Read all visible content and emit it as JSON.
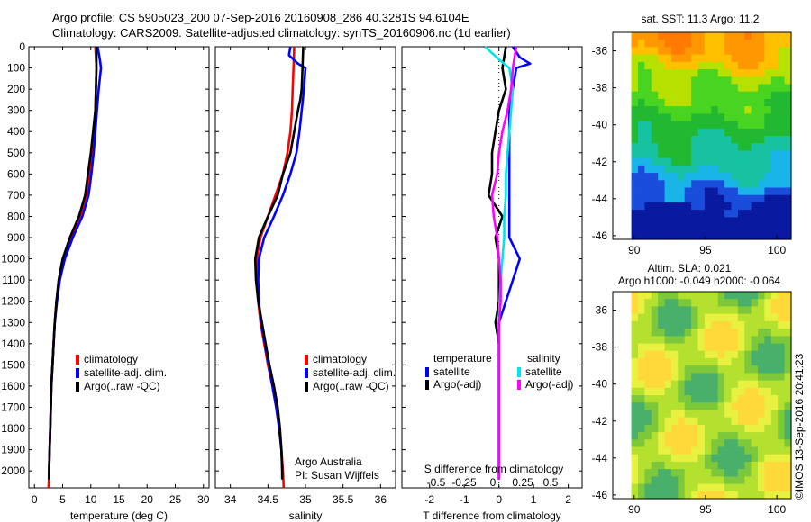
{
  "header": {
    "line1": "Argo profile: CS 5905023_200 07-Sep-2016 20160908_286 40.3281S 94.6104E",
    "line2": "Climatology: CARS2009. Satellite-adjusted climatology: synTS_20160906.nc (1d earlier)"
  },
  "side_stamp": "©IMOS 13-Sep-2016 20:41:23",
  "colors": {
    "climatology": "#ff0000",
    "satellite": "#0000ff",
    "argo": "#000000",
    "satellite_s": "#00e5e5",
    "argo_s": "#ff00ff"
  },
  "chart_data": [
    {
      "type": "line",
      "id": "temp",
      "xlabel": "temperature (deg C)",
      "xlim": [
        -1,
        31
      ],
      "xticks": [
        "0",
        "5",
        "10",
        "15",
        "20",
        "25",
        "30"
      ],
      "ylim": [
        2080,
        0
      ],
      "yticks": [
        "0",
        "100",
        "200",
        "300",
        "400",
        "500",
        "600",
        "700",
        "800",
        "900",
        "1000",
        "1100",
        "1200",
        "1300",
        "1400",
        "1500",
        "1600",
        "1700",
        "1800",
        "1900",
        "2000"
      ],
      "legend": [
        "climatology",
        "satellite-adj. clim.",
        "Argo(..raw -QC)"
      ],
      "series": [
        {
          "name": "climatology",
          "color": "#ff0000",
          "points": [
            [
              10.8,
              0
            ],
            [
              11.0,
              100
            ],
            [
              10.9,
              200
            ],
            [
              10.8,
              300
            ],
            [
              10.5,
              400
            ],
            [
              10.2,
              500
            ],
            [
              9.8,
              600
            ],
            [
              9.3,
              700
            ],
            [
              8.2,
              800
            ],
            [
              6.6,
              900
            ],
            [
              5.2,
              1000
            ],
            [
              4.4,
              1100
            ],
            [
              3.9,
              1200
            ],
            [
              3.6,
              1300
            ],
            [
              3.4,
              1400
            ],
            [
              3.2,
              1500
            ],
            [
              3.0,
              1600
            ],
            [
              2.9,
              1700
            ],
            [
              2.8,
              1800
            ],
            [
              2.7,
              1900
            ],
            [
              2.6,
              2000
            ],
            [
              2.5,
              2080
            ]
          ]
        },
        {
          "name": "satellite-adj. clim.",
          "color": "#0000ff",
          "points": [
            [
              11.2,
              0
            ],
            [
              11.6,
              60
            ],
            [
              11.8,
              100
            ],
            [
              11.4,
              200
            ],
            [
              11.1,
              300
            ],
            [
              10.8,
              400
            ],
            [
              10.5,
              500
            ],
            [
              10.1,
              600
            ],
            [
              9.6,
              700
            ],
            [
              8.5,
              800
            ],
            [
              6.8,
              900
            ],
            [
              5.4,
              1000
            ],
            [
              4.5,
              1100
            ],
            [
              4.0,
              1200
            ],
            [
              3.6,
              1300
            ],
            [
              3.4,
              1400
            ],
            [
              3.2,
              1500
            ],
            [
              3.0,
              1600
            ],
            [
              2.9,
              1700
            ],
            [
              2.8,
              1800
            ],
            [
              2.7,
              1900
            ],
            [
              2.6,
              2000
            ],
            [
              2.6,
              2040
            ]
          ]
        },
        {
          "name": "Argo(..raw -QC)",
          "color": "#000000",
          "points": [
            [
              11.0,
              0
            ],
            [
              11.0,
              100
            ],
            [
              10.9,
              200
            ],
            [
              10.8,
              300
            ],
            [
              10.4,
              400
            ],
            [
              10.0,
              500
            ],
            [
              9.5,
              600
            ],
            [
              9.0,
              700
            ],
            [
              7.9,
              800
            ],
            [
              6.3,
              900
            ],
            [
              5.0,
              1000
            ],
            [
              4.3,
              1100
            ],
            [
              3.9,
              1200
            ],
            [
              3.6,
              1300
            ],
            [
              3.4,
              1400
            ],
            [
              3.2,
              1500
            ],
            [
              3.0,
              1600
            ],
            [
              2.9,
              1700
            ],
            [
              2.8,
              1800
            ],
            [
              2.7,
              1900
            ],
            [
              2.6,
              2000
            ],
            [
              2.6,
              2040
            ]
          ]
        }
      ]
    },
    {
      "type": "line",
      "id": "sal",
      "xlabel": "salinity",
      "xlim": [
        33.8,
        36.2
      ],
      "xticks": [
        "34",
        "34.5",
        "35",
        "35.5",
        "36"
      ],
      "ylim": [
        2080,
        0
      ],
      "legend": [
        "climatology",
        "satellite-adj. clim.",
        "Argo(..raw -QC)"
      ],
      "annotation": [
        "Argo Australia",
        "PI: Susan Wijffels"
      ],
      "series": [
        {
          "name": "climatology",
          "color": "#ff0000",
          "points": [
            [
              34.85,
              0
            ],
            [
              34.84,
              100
            ],
            [
              34.83,
              200
            ],
            [
              34.82,
              300
            ],
            [
              34.8,
              400
            ],
            [
              34.76,
              500
            ],
            [
              34.7,
              600
            ],
            [
              34.6,
              700
            ],
            [
              34.5,
              800
            ],
            [
              34.4,
              900
            ],
            [
              34.35,
              1000
            ],
            [
              34.35,
              1100
            ],
            [
              34.37,
              1200
            ],
            [
              34.4,
              1300
            ],
            [
              34.45,
              1400
            ],
            [
              34.5,
              1500
            ],
            [
              34.56,
              1600
            ],
            [
              34.61,
              1700
            ],
            [
              34.65,
              1800
            ],
            [
              34.68,
              1900
            ],
            [
              34.7,
              2000
            ],
            [
              34.71,
              2080
            ]
          ]
        },
        {
          "name": "satellite-adj. clim.",
          "color": "#0000ff",
          "points": [
            [
              34.8,
              0
            ],
            [
              34.78,
              40
            ],
            [
              34.9,
              80
            ],
            [
              35.0,
              100
            ],
            [
              34.98,
              200
            ],
            [
              34.95,
              300
            ],
            [
              34.92,
              400
            ],
            [
              34.88,
              500
            ],
            [
              34.8,
              600
            ],
            [
              34.7,
              700
            ],
            [
              34.58,
              800
            ],
            [
              34.45,
              900
            ],
            [
              34.38,
              1000
            ],
            [
              34.37,
              1100
            ],
            [
              34.38,
              1200
            ],
            [
              34.41,
              1300
            ],
            [
              34.46,
              1400
            ],
            [
              34.51,
              1500
            ],
            [
              34.56,
              1600
            ],
            [
              34.61,
              1700
            ],
            [
              34.65,
              1800
            ],
            [
              34.68,
              1900
            ],
            [
              34.69,
              2000
            ],
            [
              34.69,
              2040
            ]
          ]
        },
        {
          "name": "Argo(..raw -QC)",
          "color": "#000000",
          "points": [
            [
              34.97,
              0
            ],
            [
              34.96,
              100
            ],
            [
              34.95,
              200
            ],
            [
              34.93,
              250
            ],
            [
              34.9,
              300
            ],
            [
              34.85,
              400
            ],
            [
              34.8,
              500
            ],
            [
              34.7,
              600
            ],
            [
              34.63,
              700
            ],
            [
              34.5,
              800
            ],
            [
              34.38,
              900
            ],
            [
              34.33,
              1000
            ],
            [
              34.34,
              1100
            ],
            [
              34.37,
              1200
            ],
            [
              34.42,
              1300
            ],
            [
              34.47,
              1400
            ],
            [
              34.52,
              1500
            ],
            [
              34.58,
              1600
            ],
            [
              34.63,
              1700
            ],
            [
              34.66,
              1800
            ],
            [
              34.68,
              1900
            ],
            [
              34.69,
              2000
            ],
            [
              34.69,
              2040
            ]
          ]
        }
      ]
    },
    {
      "type": "line",
      "id": "diff",
      "xlabel": "T difference from climatology",
      "xlabel2": "S difference from climatology",
      "xlim": [
        -2.8,
        2.4
      ],
      "xticks": [
        "-2",
        "-1",
        "0",
        "1",
        "2"
      ],
      "xticks2": [
        "-0.5",
        "-0.25",
        "0",
        "0.25",
        "0.5"
      ],
      "ylim": [
        2080,
        0
      ],
      "legend": {
        "temperature_title": "temperature",
        "salinity_title": "salinity",
        "items": [
          "satellite",
          "Argo(-adj)",
          "satellite",
          "Argo(-adj)"
        ]
      },
      "series": [
        {
          "name": "satellite",
          "color": "#0000ff",
          "points": [
            [
              0.4,
              0
            ],
            [
              0.6,
              50
            ],
            [
              0.9,
              80
            ],
            [
              0.5,
              100
            ],
            [
              0.4,
              200
            ],
            [
              0.3,
              300
            ],
            [
              0.3,
              400
            ],
            [
              0.3,
              500
            ],
            [
              0.3,
              600
            ],
            [
              0.3,
              700
            ],
            [
              0.3,
              800
            ],
            [
              0.3,
              900
            ],
            [
              0.6,
              1000
            ],
            [
              0.4,
              1100
            ],
            [
              0.2,
              1200
            ],
            [
              0.0,
              1300
            ],
            [
              0.0,
              1400
            ],
            [
              0.0,
              1500
            ],
            [
              0.0,
              1600
            ],
            [
              0.0,
              1700
            ],
            [
              0.0,
              1800
            ],
            [
              0.0,
              1900
            ],
            [
              0.0,
              2000
            ],
            [
              0.0,
              2040
            ]
          ]
        },
        {
          "name": "Argo(-adj)",
          "color": "#000000",
          "points": [
            [
              0.2,
              0
            ],
            [
              0.1,
              100
            ],
            [
              0.2,
              200
            ],
            [
              0.0,
              300
            ],
            [
              -0.1,
              400
            ],
            [
              -0.2,
              500
            ],
            [
              -0.2,
              600
            ],
            [
              -0.3,
              700
            ],
            [
              0.1,
              800
            ],
            [
              -0.1,
              900
            ],
            [
              0.0,
              1000
            ],
            [
              0.0,
              1100
            ],
            [
              0.0,
              1200
            ],
            [
              -0.1,
              1300
            ],
            [
              0.0,
              1400
            ],
            [
              0.0,
              1500
            ],
            [
              0.0,
              1600
            ],
            [
              0.0,
              1700
            ],
            [
              0.0,
              1800
            ],
            [
              0.0,
              1900
            ],
            [
              0.0,
              2000
            ],
            [
              0.0,
              2040
            ]
          ]
        },
        {
          "name": "satellite",
          "color": "#00e5e5",
          "points": [
            [
              -0.4,
              0
            ],
            [
              0.0,
              60
            ],
            [
              0.3,
              100
            ],
            [
              0.4,
              200
            ],
            [
              0.35,
              300
            ],
            [
              0.3,
              400
            ],
            [
              0.25,
              500
            ],
            [
              0.2,
              600
            ],
            [
              0.2,
              700
            ],
            [
              0.15,
              800
            ],
            [
              0.15,
              900
            ],
            [
              0.1,
              1000
            ],
            [
              0.05,
              1100
            ],
            [
              0.02,
              1200
            ],
            [
              0.0,
              1300
            ],
            [
              0.0,
              1400
            ],
            [
              0.0,
              1500
            ],
            [
              0.0,
              1600
            ],
            [
              0.0,
              1700
            ],
            [
              0.0,
              1800
            ],
            [
              0.0,
              1900
            ],
            [
              0.0,
              2000
            ],
            [
              0.0,
              2040
            ]
          ]
        },
        {
          "name": "Argo(-adj)",
          "color": "#ff00ff",
          "points": [
            [
              0.5,
              0
            ],
            [
              0.4,
              100
            ],
            [
              0.35,
              200
            ],
            [
              0.25,
              300
            ],
            [
              0.1,
              400
            ],
            [
              0.0,
              500
            ],
            [
              -0.05,
              600
            ],
            [
              -0.2,
              700
            ],
            [
              -0.15,
              800
            ],
            [
              -0.05,
              900
            ],
            [
              0.0,
              1000
            ],
            [
              0.05,
              1100
            ],
            [
              0.05,
              1200
            ],
            [
              0.0,
              1300
            ],
            [
              0.0,
              1400
            ],
            [
              0.0,
              1500
            ],
            [
              0.0,
              1600
            ],
            [
              0.0,
              1700
            ],
            [
              0.0,
              1800
            ],
            [
              0.0,
              1900
            ],
            [
              0.0,
              2000
            ],
            [
              0.0,
              2040
            ]
          ]
        }
      ]
    },
    {
      "type": "heatmap",
      "id": "sst",
      "title": "sat. SST: 11.3 Argo: 11.2",
      "xlim": [
        88.5,
        101
      ],
      "ylim": [
        -46.2,
        -35
      ],
      "xticks": [
        "90",
        "95",
        "100"
      ],
      "yticks": [
        "-36",
        "-38",
        "-40",
        "-42",
        "-44",
        "-46"
      ]
    },
    {
      "type": "heatmap",
      "id": "sla",
      "title": "Altim. SLA: 0.021",
      "subtitle": "Argo h1000: -0.049 h2000: -0.064",
      "xlim": [
        88.5,
        101
      ],
      "ylim": [
        -46.2,
        -35
      ],
      "xticks": [
        "90",
        "95",
        "100"
      ],
      "yticks": [
        "-36",
        "-38",
        "-40",
        "-42",
        "-44",
        "-46"
      ]
    }
  ]
}
